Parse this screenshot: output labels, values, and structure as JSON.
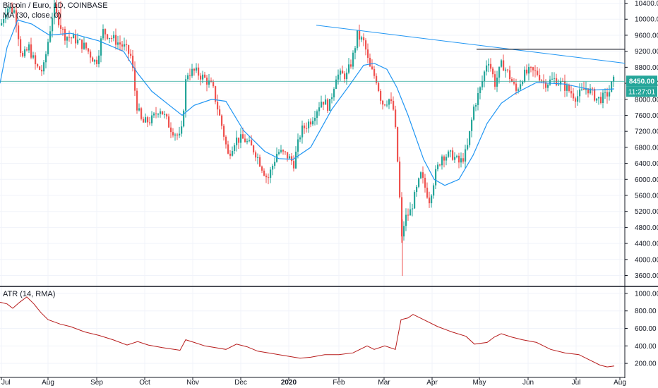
{
  "header": {
    "symbol_label": "Bitcoin / Euro, 1D, COINBASE",
    "ma_label": "MA (30, close, 0)",
    "atr_label": "ATR (14, RMA)"
  },
  "price_badges": {
    "last_price": "8450.00",
    "countdown": "11:27:01",
    "badge_color": "#26a69a"
  },
  "colors": {
    "up": "#26a69a",
    "down": "#ef5350",
    "ma": "#2196f3",
    "atr": "#b71c1c",
    "trendline": "#2196f3",
    "resistance": "#131722",
    "grid": "#f0f3fa"
  },
  "chart_data": [
    {
      "type": "candlestick",
      "title": "Bitcoin / Euro, 1D, COINBASE",
      "y_ticks": [
        3600,
        4000,
        4400,
        4800,
        5200,
        5600,
        6000,
        6400,
        6800,
        7200,
        7600,
        8000,
        8400,
        8800,
        9200,
        9600,
        10000,
        10400
      ],
      "ylim": [
        3380,
        10480
      ],
      "x_ticks": [
        "Jul",
        "Aug",
        "Sep",
        "Oct",
        "Nov",
        "Dec",
        "2020",
        "Feb",
        "Mar",
        "Apr",
        "May",
        "Jun",
        "Jul",
        "Aug"
      ],
      "series": [
        {
          "name": "MA (30, close, 0)",
          "type": "line",
          "points": [
            [
              0,
              8400
            ],
            [
              10,
              9300
            ],
            [
              25,
              9980
            ],
            [
              45,
              9880
            ],
            [
              70,
              9600
            ],
            [
              100,
              9650
            ],
            [
              140,
              9460
            ],
            [
              175,
              9200
            ],
            [
              195,
              8650
            ],
            [
              215,
              8200
            ],
            [
              240,
              7850
            ],
            [
              258,
              7600
            ],
            [
              275,
              7850
            ],
            [
              300,
              8000
            ],
            [
              320,
              7950
            ],
            [
              345,
              7220
            ],
            [
              375,
              6700
            ],
            [
              395,
              6520
            ],
            [
              415,
              6500
            ],
            [
              440,
              6800
            ],
            [
              470,
              7750
            ],
            [
              495,
              8350
            ],
            [
              515,
              8850
            ],
            [
              530,
              8900
            ],
            [
              548,
              8750
            ],
            [
              562,
              8300
            ],
            [
              578,
              7600
            ],
            [
              600,
              6500
            ],
            [
              615,
              6000
            ],
            [
              630,
              5850
            ],
            [
              650,
              6000
            ],
            [
              670,
              6600
            ],
            [
              690,
              7400
            ],
            [
              710,
              7900
            ],
            [
              730,
              8150
            ],
            [
              760,
              8420
            ],
            [
              800,
              8380
            ],
            [
              840,
              8230
            ],
            [
              870,
              8260
            ]
          ]
        },
        {
          "name": "Bitcoin / Euro",
          "type": "candles",
          "ohlc_anchors": [
            [
              0,
              9850
            ],
            [
              8,
              10300
            ],
            [
              20,
              10200
            ],
            [
              30,
              9000
            ],
            [
              40,
              9300
            ],
            [
              50,
              8800
            ],
            [
              60,
              8700
            ],
            [
              75,
              10300
            ],
            [
              90,
              9600
            ],
            [
              105,
              9500
            ],
            [
              120,
              9300
            ],
            [
              135,
              8900
            ],
            [
              145,
              9700
            ],
            [
              160,
              9500
            ],
            [
              175,
              9300
            ],
            [
              185,
              9050
            ],
            [
              192,
              7900
            ],
            [
              200,
              7400
            ],
            [
              215,
              7500
            ],
            [
              225,
              7800
            ],
            [
              240,
              7300
            ],
            [
              255,
              7000
            ],
            [
              263,
              8650
            ],
            [
              275,
              8700
            ],
            [
              290,
              8500
            ],
            [
              300,
              8300
            ],
            [
              315,
              7200
            ],
            [
              322,
              6600
            ],
            [
              332,
              7000
            ],
            [
              345,
              7000
            ],
            [
              360,
              6700
            ],
            [
              378,
              6000
            ],
            [
              392,
              6700
            ],
            [
              405,
              6600
            ],
            [
              415,
              6400
            ],
            [
              425,
              7200
            ],
            [
              440,
              7500
            ],
            [
              455,
              8000
            ],
            [
              465,
              7800
            ],
            [
              475,
              8600
            ],
            [
              490,
              8600
            ],
            [
              498,
              9000
            ],
            [
              505,
              9600
            ],
            [
              515,
              9400
            ],
            [
              522,
              8800
            ],
            [
              532,
              8500
            ],
            [
              540,
              7900
            ],
            [
              550,
              8000
            ],
            [
              557,
              7700
            ],
            [
              563,
              6200
            ],
            [
              568,
              4500
            ],
            [
              572,
              5000
            ],
            [
              580,
              5200
            ],
            [
              595,
              6100
            ],
            [
              607,
              5500
            ],
            [
              615,
              6100
            ],
            [
              625,
              6600
            ],
            [
              640,
              6600
            ],
            [
              650,
              6400
            ],
            [
              660,
              6700
            ],
            [
              670,
              7800
            ],
            [
              680,
              8300
            ],
            [
              690,
              9050
            ],
            [
              700,
              8400
            ],
            [
              710,
              8900
            ],
            [
              720,
              8600
            ],
            [
              730,
              8200
            ],
            [
              740,
              8600
            ],
            [
              750,
              8700
            ],
            [
              760,
              8650
            ],
            [
              770,
              8400
            ],
            [
              785,
              8500
            ],
            [
              800,
              8300
            ],
            [
              815,
              8050
            ],
            [
              830,
              8300
            ],
            [
              845,
              8000
            ],
            [
              855,
              8050
            ],
            [
              862,
              8200
            ],
            [
              867,
              8450
            ]
          ],
          "notable_extremes": {
            "high": 10450,
            "low": 3590
          }
        },
        {
          "name": "Resistance",
          "type": "hline",
          "y": 9250,
          "x_range": [
            675,
            932
          ]
        },
        {
          "name": "Trendline",
          "type": "line",
          "points": [
            [
              448,
              9850
            ],
            [
              932,
              8900
            ]
          ]
        },
        {
          "name": "Last price",
          "type": "hline",
          "y": 8450
        }
      ]
    },
    {
      "type": "line",
      "title": "ATR (14, RMA)",
      "y_ticks": [
        200,
        400,
        600,
        800,
        1000
      ],
      "ylim": [
        80,
        1080
      ],
      "series": [
        {
          "name": "ATR (14, RMA)",
          "points": [
            [
              0,
              900
            ],
            [
              10,
              880
            ],
            [
              18,
              830
            ],
            [
              28,
              900
            ],
            [
              38,
              960
            ],
            [
              48,
              880
            ],
            [
              58,
              780
            ],
            [
              68,
              700
            ],
            [
              85,
              650
            ],
            [
              100,
              620
            ],
            [
              120,
              560
            ],
            [
              140,
              520
            ],
            [
              160,
              470
            ],
            [
              180,
              410
            ],
            [
              195,
              450
            ],
            [
              210,
              410
            ],
            [
              230,
              380
            ],
            [
              255,
              350
            ],
            [
              263,
              470
            ],
            [
              275,
              440
            ],
            [
              290,
              400
            ],
            [
              305,
              380
            ],
            [
              320,
              360
            ],
            [
              335,
              420
            ],
            [
              350,
              390
            ],
            [
              365,
              340
            ],
            [
              380,
              320
            ],
            [
              395,
              300
            ],
            [
              410,
              280
            ],
            [
              425,
              260
            ],
            [
              440,
              270
            ],
            [
              460,
              300
            ],
            [
              480,
              300
            ],
            [
              500,
              320
            ],
            [
              520,
              400
            ],
            [
              530,
              360
            ],
            [
              545,
              400
            ],
            [
              560,
              360
            ],
            [
              568,
              700
            ],
            [
              578,
              720
            ],
            [
              585,
              760
            ],
            [
              600,
              700
            ],
            [
              620,
              620
            ],
            [
              640,
              560
            ],
            [
              660,
              510
            ],
            [
              672,
              420
            ],
            [
              690,
              440
            ],
            [
              700,
              500
            ],
            [
              710,
              540
            ],
            [
              725,
              500
            ],
            [
              740,
              470
            ],
            [
              760,
              440
            ],
            [
              780,
              360
            ],
            [
              800,
              320
            ],
            [
              820,
              300
            ],
            [
              835,
              240
            ],
            [
              850,
              180
            ],
            [
              860,
              160
            ],
            [
              870,
              170
            ]
          ]
        }
      ]
    }
  ]
}
